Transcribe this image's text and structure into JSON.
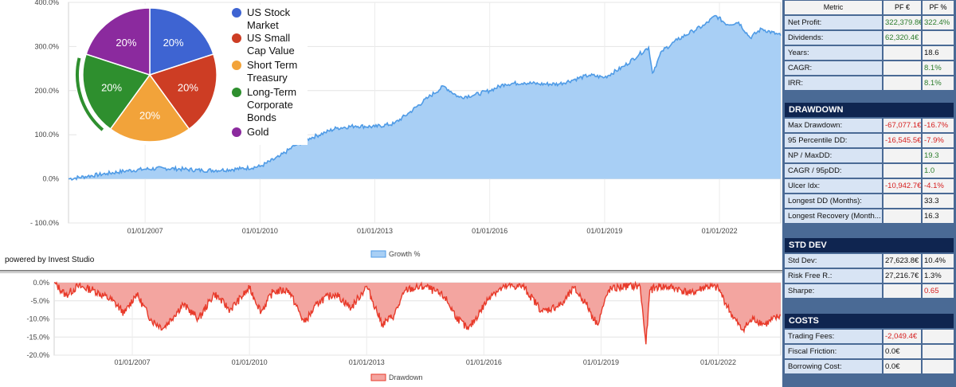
{
  "footer": {
    "powered_by": "powered by Invest Studio"
  },
  "chart_data": [
    {
      "type": "area",
      "y_ticks": [
        "400.0%",
        "300.0%",
        "200.0%",
        "100.0%",
        "0.0%",
        "- 100.0%"
      ],
      "x_ticks": [
        "01/01/2007",
        "01/01/2010",
        "01/01/2013",
        "01/01/2016",
        "01/01/2019",
        "01/01/2022"
      ],
      "ylim": [
        -100,
        400
      ],
      "xlim": [
        2005.0,
        2023.6
      ],
      "legend": [
        "Growth %"
      ],
      "legend_position": "bottom-center",
      "color": "#4f9be6",
      "fill": "#a8cff5",
      "series": [
        {
          "name": "Growth %",
          "x": [
            2005.0,
            2005.5,
            2006.0,
            2006.5,
            2007.0,
            2007.5,
            2008.0,
            2008.5,
            2009.0,
            2009.5,
            2010.0,
            2010.5,
            2010.9,
            2011.3,
            2011.7,
            2012.0,
            2012.5,
            2013.0,
            2013.5,
            2013.9,
            2014.4,
            2014.8,
            2015.2,
            2015.6,
            2016.0,
            2016.4,
            2016.9,
            2017.3,
            2017.8,
            2018.2,
            2018.6,
            2019.0,
            2019.5,
            2019.9,
            2020.15,
            2020.25,
            2020.5,
            2020.9,
            2021.3,
            2021.6,
            2021.9,
            2022.2,
            2022.5,
            2022.8,
            2023.1,
            2023.6
          ],
          "values": [
            0,
            6,
            12,
            18,
            22,
            24,
            22,
            19,
            20,
            23,
            28,
            50,
            75,
            92,
            105,
            115,
            120,
            118,
            125,
            150,
            185,
            210,
            185,
            190,
            200,
            215,
            218,
            215,
            215,
            225,
            235,
            230,
            255,
            282,
            298,
            240,
            290,
            315,
            335,
            348,
            370,
            350,
            355,
            320,
            340,
            325
          ]
        }
      ],
      "pie": {
        "labels": [
          "US Stock Market",
          "US Small Cap Value",
          "Short Term Treasury",
          "Long-Term Corporate Bonds",
          "Gold"
        ],
        "legend_lines": [
          [
            "US Stock",
            "Market"
          ],
          [
            "US Small",
            "Cap Value"
          ],
          [
            "Short Term",
            "Treasury"
          ],
          [
            "Long-Term",
            "Corporate",
            "Bonds"
          ],
          [
            "Gold"
          ]
        ],
        "values": [
          20,
          20,
          20,
          20,
          20
        ],
        "slice_labels": [
          "20%",
          "20%",
          "20%",
          "20%",
          "20%"
        ],
        "colors": [
          "#3e64d2",
          "#cd3d24",
          "#f2a33a",
          "#2e8f2e",
          "#8b2a9e"
        ]
      }
    },
    {
      "type": "area",
      "y_ticks": [
        "0.0%",
        "-5.0%",
        "-10.0%",
        "-15.0%",
        "-20.0%"
      ],
      "x_ticks": [
        "01/01/2007",
        "01/01/2010",
        "01/01/2013",
        "01/01/2016",
        "01/01/2019",
        "01/01/2022"
      ],
      "ylim": [
        -20,
        0
      ],
      "xlim": [
        2005.0,
        2023.6
      ],
      "legend": [
        "Drawdown"
      ],
      "legend_position": "bottom-center",
      "color": "#e83a2a",
      "fill": "#f3a5a0",
      "series": [
        {
          "name": "Drawdown",
          "x": [
            2005.0,
            2005.3,
            2005.6,
            2006.0,
            2006.5,
            2006.8,
            2007.1,
            2007.5,
            2007.8,
            2008.3,
            2008.7,
            2009.1,
            2009.5,
            2010.0,
            2010.3,
            2010.6,
            2011.0,
            2011.4,
            2011.8,
            2012.2,
            2012.6,
            2013.0,
            2013.4,
            2013.7,
            2014.0,
            2014.5,
            2015.0,
            2015.3,
            2015.6,
            2015.9,
            2016.2,
            2016.6,
            2017.0,
            2017.5,
            2018.0,
            2018.3,
            2018.6,
            2018.9,
            2019.2,
            2019.6,
            2020.0,
            2020.15,
            2020.25,
            2020.5,
            2020.9,
            2021.3,
            2021.7,
            2022.0,
            2022.3,
            2022.6,
            2022.9,
            2023.2,
            2023.6
          ],
          "values": [
            0,
            -3.5,
            -1.0,
            -2.0,
            -5.0,
            -8.5,
            -3.0,
            -10.5,
            -12.5,
            -6.0,
            -10.0,
            -3.0,
            -7.5,
            -1.5,
            -8.0,
            -2.5,
            -2.0,
            -11.0,
            -5.0,
            -3.0,
            -7.0,
            -1.0,
            -11.5,
            -9.0,
            -2.0,
            -1.0,
            -4.0,
            -9.5,
            -13.0,
            -8.0,
            -3.0,
            -1.0,
            -1.0,
            -8.0,
            -6.0,
            -1.5,
            -5.5,
            -11.5,
            -2.0,
            -1.0,
            -1.0,
            -17.0,
            -2.0,
            -1.0,
            -1.5,
            -3.0,
            -1.0,
            -1.5,
            -8.0,
            -13.0,
            -10.0,
            -11.5,
            -9.0
          ]
        }
      ]
    }
  ],
  "metrics": {
    "headers": [
      "Metric",
      "PF €",
      "PF %"
    ],
    "rows": [
      {
        "label": "Net Profit:",
        "value": "322,379.8€",
        "pct": "322.4%",
        "color": "green"
      },
      {
        "label": "Dividends:",
        "value": "62,320.4€",
        "pct": "",
        "color": "green"
      },
      {
        "label": "Years:",
        "value": "",
        "pct": "18.6",
        "color": "black"
      },
      {
        "label": "CAGR:",
        "value": "",
        "pct": "8.1%",
        "color": "green"
      },
      {
        "label": "IRR:",
        "value": "",
        "pct": "8.1%",
        "color": "green"
      }
    ]
  },
  "drawdown": {
    "title": "DRAWDOWN",
    "rows": [
      {
        "label": "Max Drawdown:",
        "value": "-67,077.1€",
        "pct": "-16.7%",
        "color": "red"
      },
      {
        "label": "95 Percentile DD:",
        "value": "-16,545.5€",
        "pct": "-7.9%",
        "color": "red"
      },
      {
        "label": "NP / MaxDD:",
        "value": "",
        "pct": "19.3",
        "color": "green"
      },
      {
        "label": "CAGR / 95pDD:",
        "value": "",
        "pct": "1.0",
        "color": "green"
      },
      {
        "label": "Ulcer Idx:",
        "value": "-10,942.7€",
        "pct": "-4.1%",
        "color": "red"
      },
      {
        "label": "Longest DD (Months):",
        "value": "",
        "pct": "33.3",
        "color": "black"
      },
      {
        "label": "Longest Recovery (Month...",
        "value": "",
        "pct": "16.3",
        "color": "black"
      }
    ]
  },
  "stddev": {
    "title": "STD DEV",
    "rows": [
      {
        "label": "Std Dev:",
        "value": "27,623.8€",
        "pct": "10.4%",
        "color": "black"
      },
      {
        "label": "Risk Free R.:",
        "value": "27,216.7€",
        "pct": "1.3%",
        "color": "black"
      },
      {
        "label": "Sharpe:",
        "value": "",
        "pct": "0.65",
        "color": "red"
      }
    ]
  },
  "costs": {
    "title": "COSTS",
    "rows": [
      {
        "label": "Trading Fees:",
        "value": "-2,049.4€",
        "pct": "",
        "color": "red"
      },
      {
        "label": "Fiscal Friction:",
        "value": "0.0€",
        "pct": "",
        "color": "black"
      },
      {
        "label": "Borrowing Cost:",
        "value": "0.0€",
        "pct": "",
        "color": "black"
      }
    ]
  }
}
